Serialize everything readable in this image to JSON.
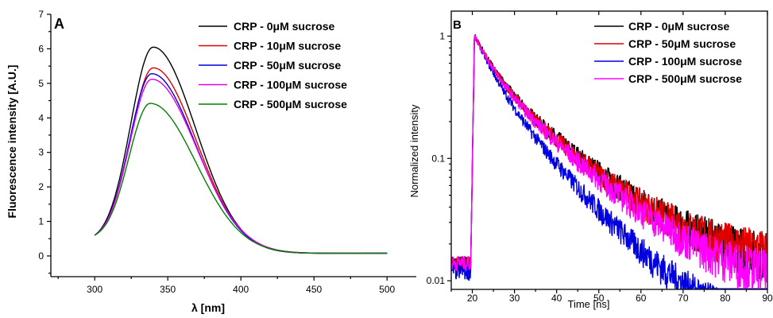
{
  "chart_data": [
    {
      "panel": "A",
      "type": "line",
      "xlabel": "λ [nm]",
      "ylabel": "Fluorescence intensity [A.U.]",
      "xlim": [
        270,
        520
      ],
      "ylim": [
        -0.6,
        7
      ],
      "xticks": [
        300,
        350,
        400,
        450,
        500
      ],
      "yticks": [
        0,
        1,
        2,
        3,
        4,
        5,
        6,
        7
      ],
      "legend_position": "top-right",
      "series": [
        {
          "name": "CRP - 0μM sucrose",
          "color": "#000000",
          "peak_x": 340,
          "peak_y": 6.05
        },
        {
          "name": "CRP - 10μM sucrose",
          "color": "#e00000",
          "peak_x": 340,
          "peak_y": 5.45
        },
        {
          "name": "CRP - 50μM sucrose",
          "color": "#0000e0",
          "peak_x": 339,
          "peak_y": 5.28
        },
        {
          "name": "CRP - 100μM sucrose",
          "color": "#e000e0",
          "peak_x": 339,
          "peak_y": 5.12
        },
        {
          "name": "CRP - 500μM sucrose",
          "color": "#008000",
          "peak_x": 338,
          "peak_y": 4.42
        }
      ],
      "x_range": [
        300,
        500
      ],
      "y_at_300": 0.6,
      "y_at_500": 0.06
    },
    {
      "panel": "B",
      "type": "line",
      "xlabel": "Time [ns]",
      "ylabel": "Normalized intensity",
      "xlim": [
        15,
        90
      ],
      "ylim": [
        0.0085,
        1.6
      ],
      "yscale": "log",
      "xticks": [
        20,
        30,
        40,
        50,
        60,
        70,
        80,
        90
      ],
      "yticks": [
        0.01,
        0.1,
        1
      ],
      "ytick_labels": [
        "0.01",
        "0.1",
        "1"
      ],
      "legend_position": "top-right",
      "series": [
        {
          "name": "CRP - 0μM sucrose",
          "color": "#000000",
          "decay_tau": 14.5,
          "baseline": 0.013
        },
        {
          "name": "CRP - 50μM sucrose",
          "color": "#e00000",
          "decay_tau": 14.0,
          "baseline": 0.0145
        },
        {
          "name": "CRP - 100μM sucrose",
          "color": "#0000e0",
          "decay_tau": 11.5,
          "baseline": 0.0035
        },
        {
          "name": "CRP - 500μM sucrose",
          "color": "#ff00ff",
          "decay_tau": 13.8,
          "baseline": 0.009
        }
      ],
      "peak_time": 20.5
    }
  ]
}
